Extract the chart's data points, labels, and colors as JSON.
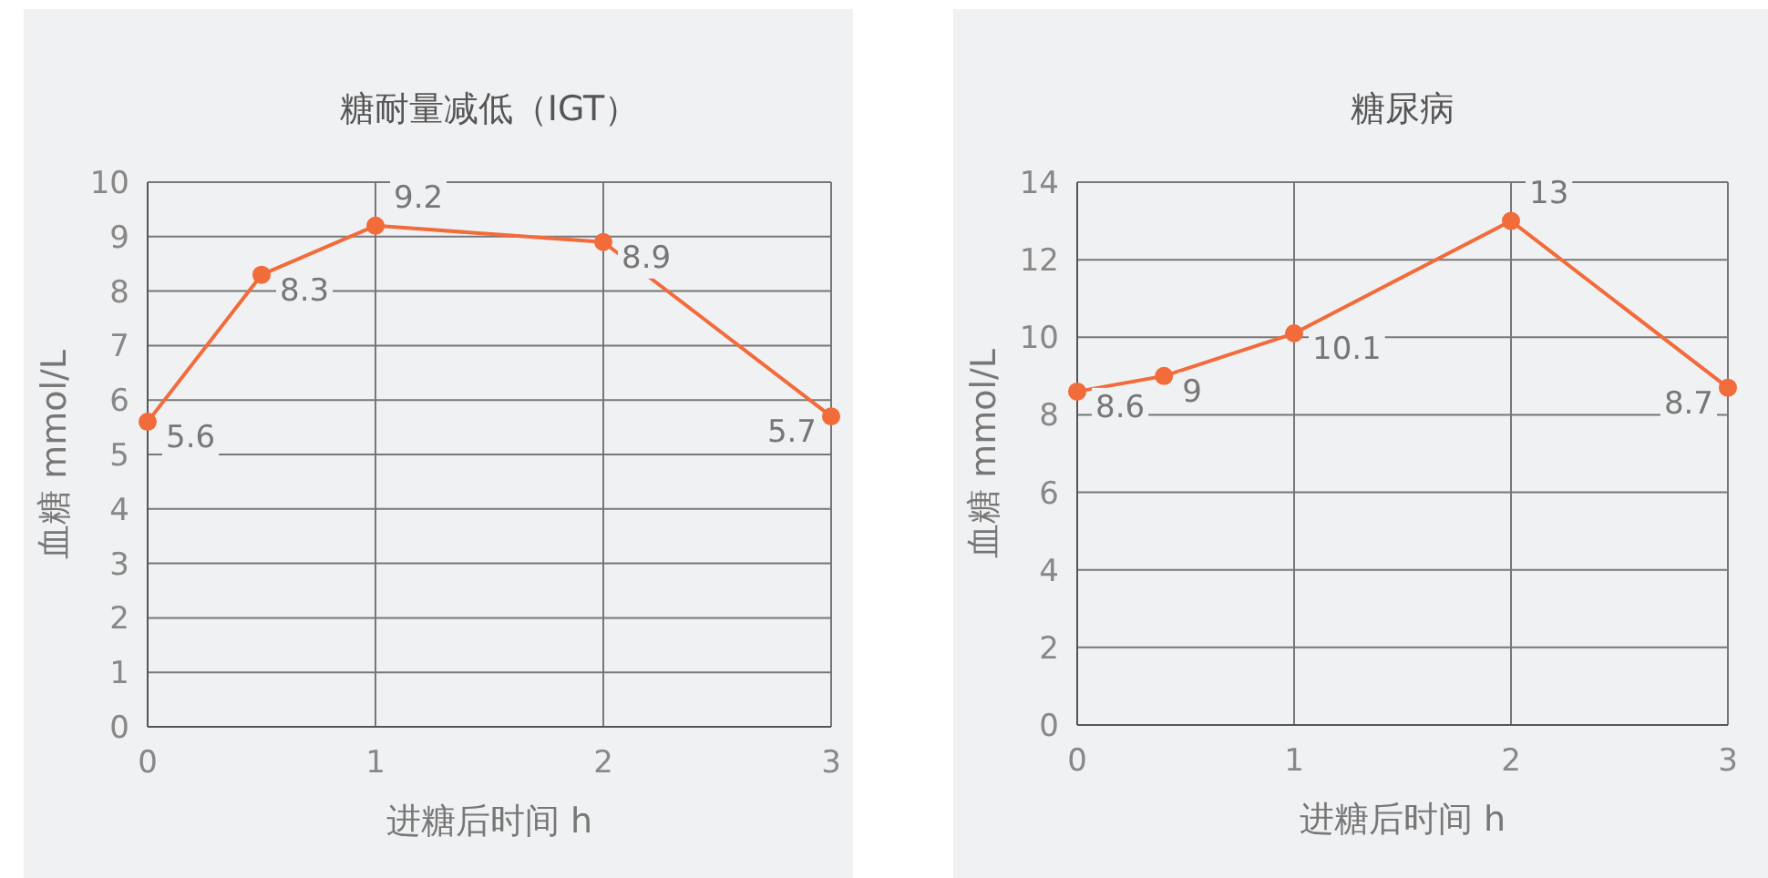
{
  "chart_data": [
    {
      "type": "line",
      "title": "糖耐量减低（IGT）",
      "xlabel": "进糖后时间 h",
      "ylabel": "血糖 mmol/L",
      "x": [
        0,
        0.5,
        1,
        2,
        3
      ],
      "series": [
        {
          "color": "#f26b3a",
          "values": [
            5.6,
            8.3,
            9.2,
            8.9,
            5.7
          ]
        }
      ],
      "xlim": [
        0,
        3
      ],
      "ylim": [
        0,
        10
      ],
      "xticks": [
        0,
        1,
        2,
        3
      ],
      "yticks": [
        0,
        1,
        2,
        3,
        4,
        5,
        6,
        7,
        8,
        9,
        10
      ],
      "grid": true,
      "marker": "circle",
      "data_labels": true
    },
    {
      "type": "line",
      "title": "糖尿病",
      "xlabel": "进糖后时间 h",
      "ylabel": "血糖 mmol/L",
      "x": [
        0,
        0.4,
        1,
        2,
        3
      ],
      "series": [
        {
          "color": "#f26b3a",
          "values": [
            8.6,
            9,
            10.1,
            13,
            8.7
          ]
        }
      ],
      "xlim": [
        0,
        3
      ],
      "ylim": [
        0,
        14
      ],
      "xticks": [
        0,
        1,
        2,
        3
      ],
      "yticks": [
        0,
        2,
        4,
        6,
        8,
        10,
        12,
        14
      ],
      "grid": true,
      "marker": "circle",
      "data_labels": true
    }
  ]
}
